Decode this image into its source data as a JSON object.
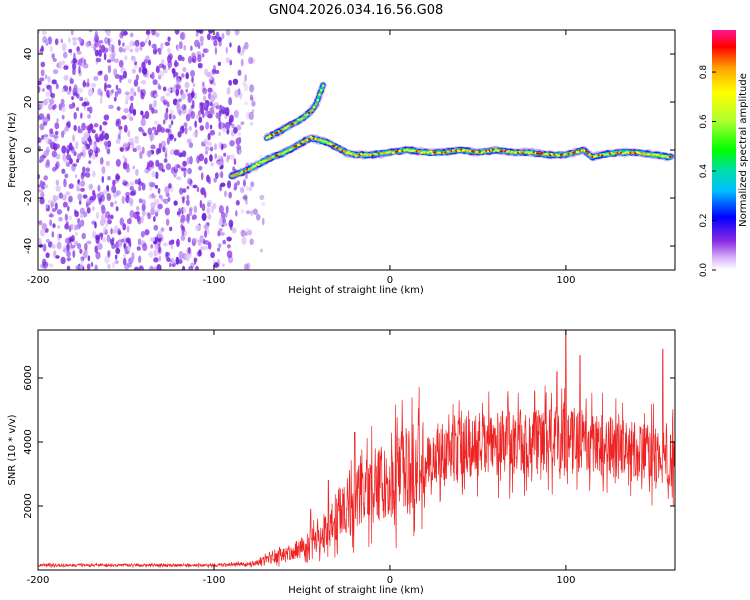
{
  "figure": {
    "title": "GN04.2026.034.16.56.G08"
  },
  "chart_data": [
    {
      "type": "heatmap",
      "title": "",
      "xlabel": "Height of straight line (km)",
      "ylabel": "Frequency (Hz)",
      "xlim": [
        -200,
        162
      ],
      "ylim": [
        -50,
        50
      ],
      "xticks": [
        -200,
        -100,
        0,
        100
      ],
      "yticks": [
        -40,
        -20,
        0,
        20,
        40
      ],
      "grid": false,
      "noise_region_x": [
        -200,
        -70
      ],
      "signal_trace": {
        "x": [
          -90,
          -80,
          -70,
          -60,
          -50,
          -45,
          -40,
          -35,
          -30,
          -25,
          -20,
          -10,
          0,
          10,
          20,
          30,
          40,
          50,
          60,
          70,
          80,
          90,
          100,
          110,
          115,
          120,
          130,
          140,
          150,
          160
        ],
        "y": [
          -11,
          -8,
          -4,
          -1,
          3,
          5,
          4,
          3,
          1,
          -1,
          -2,
          -2,
          -1,
          0,
          -1,
          -1,
          0,
          -1,
          0,
          -1,
          -1,
          -2,
          -2,
          0,
          -3,
          -2,
          -1,
          -1,
          -2,
          -3
        ]
      },
      "upper_branch": {
        "x": [
          -70,
          -62,
          -55,
          -50,
          -45,
          -42,
          -38
        ],
        "y": [
          5,
          8,
          11,
          13,
          16,
          19,
          27
        ]
      },
      "colorbar": {
        "label": "Normalized spectral amplitude",
        "ticks": [
          0.0,
          0.2,
          0.4,
          0.6,
          0.8
        ],
        "range": [
          0,
          0.97
        ],
        "colors": [
          "#ffffff",
          "#d8b4f8",
          "#8a2be2",
          "#0000ff",
          "#00bfff",
          "#00ff7f",
          "#32cd32",
          "#adff2f",
          "#ffff00",
          "#ffa500",
          "#ff0000",
          "#ff1493"
        ]
      }
    },
    {
      "type": "line",
      "title": "",
      "xlabel": "Height of straight line (km)",
      "ylabel": "SNR (10 * v/v)",
      "xlim": [
        -200,
        162
      ],
      "ylim": [
        0,
        7500
      ],
      "xticks": [
        -200,
        -100,
        0,
        100
      ],
      "yticks": [
        2000,
        4000,
        6000
      ],
      "grid": false,
      "color": "#ee2222",
      "series": [
        {
          "name": "SNR",
          "x": [
            -200,
            -150,
            -100,
            -80,
            -70,
            -60,
            -50,
            -40,
            -30,
            -20,
            -10,
            0,
            10,
            20,
            30,
            40,
            50,
            60,
            70,
            80,
            90,
            100,
            110,
            120,
            130,
            140,
            150,
            160
          ],
          "y": [
            150,
            150,
            150,
            200,
            300,
            500,
            700,
            1000,
            1600,
            2200,
            2600,
            2900,
            3100,
            3400,
            3600,
            3800,
            3900,
            3950,
            4000,
            4000,
            4000,
            4050,
            4000,
            3900,
            3800,
            3700,
            3600,
            3500
          ]
        }
      ],
      "peaks": [
        {
          "x": -45,
          "y": 1900
        },
        {
          "x": -35,
          "y": 2800
        },
        {
          "x": -20,
          "y": 4300
        },
        {
          "x": 95,
          "y": 6200
        },
        {
          "x": 100,
          "y": 7500
        },
        {
          "x": 108,
          "y": 6700
        },
        {
          "x": 155,
          "y": 6900
        }
      ]
    }
  ]
}
